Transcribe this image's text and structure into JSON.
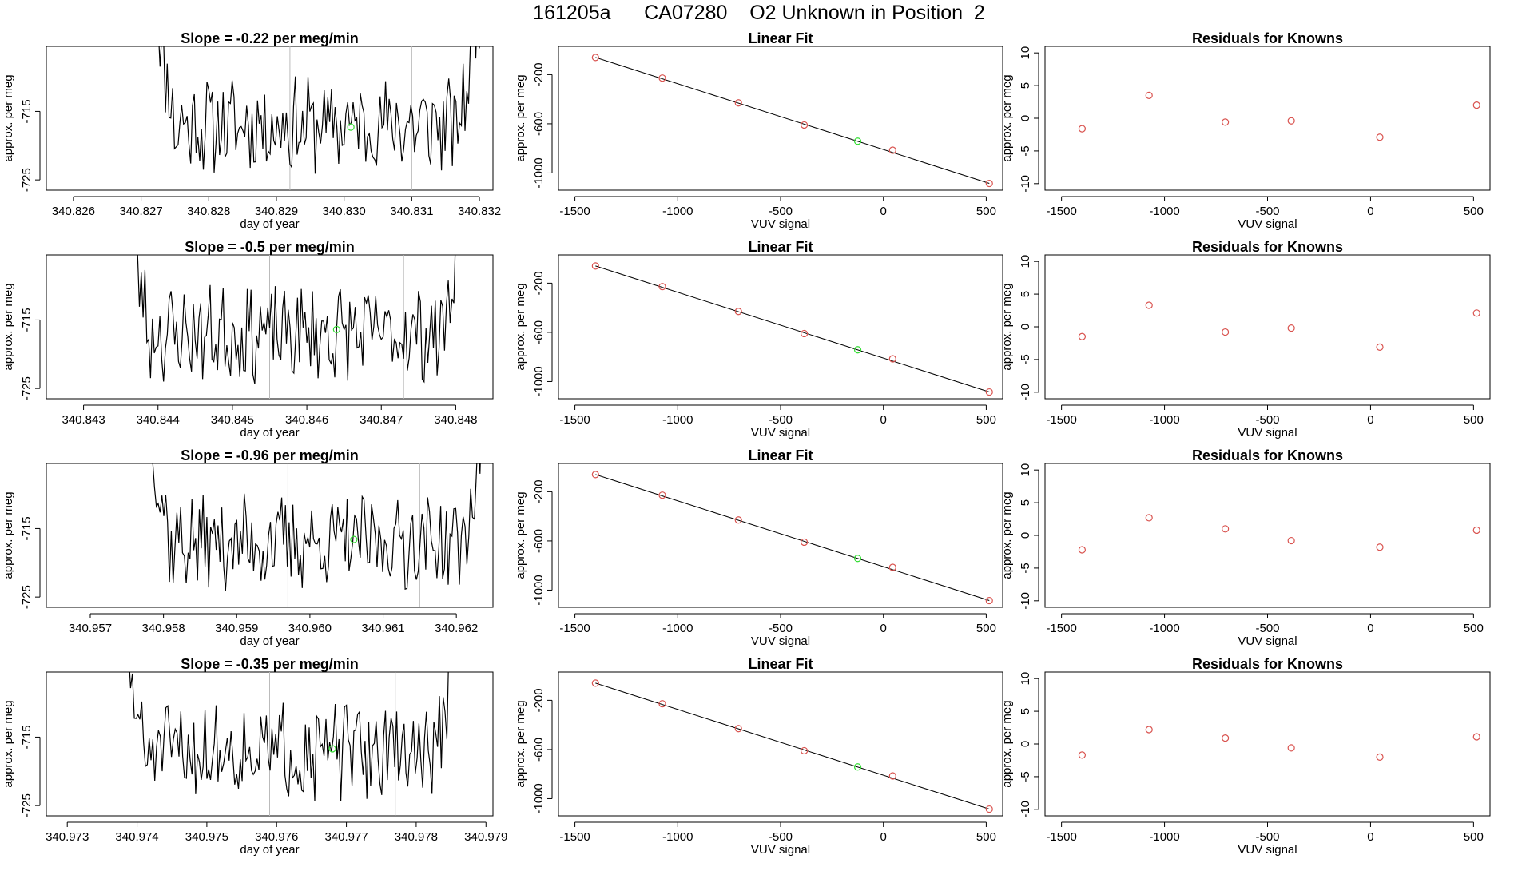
{
  "page": {
    "title": "161205a      CA07280    O2 Unknown in Position  2"
  },
  "style": {
    "trace_color": "#000000",
    "known_color": "#d9534f",
    "unknown_color": "#33dd33",
    "vline_color": "#bbbbbb"
  },
  "chart_data": [
    {
      "row": 1,
      "kind": "timeseries",
      "type": "line",
      "title": "Slope =  -0.22  per meg/min",
      "xlabel": "day of year",
      "ylabel": "approx. per meg",
      "xlim": [
        340.8256,
        340.8322
      ],
      "xticks": [
        "340.826",
        "340.827",
        "340.828",
        "340.829",
        "340.830",
        "340.831",
        "340.832"
      ],
      "ylim": [
        -726.5,
        -705.5
      ],
      "yticks": [
        "-725",
        "-715"
      ],
      "data_start": 340.8272,
      "data_end": 340.832,
      "seed": 11,
      "vlines": [
        340.8292,
        340.831
      ],
      "unknown_point": {
        "x": 340.8301,
        "y": -717.3
      }
    },
    {
      "row": 1,
      "kind": "fit",
      "type": "scatter",
      "title": "Linear Fit",
      "xlabel": "VUV signal",
      "ylabel": "approx. per meg",
      "xlim": [
        -1580,
        580
      ],
      "xticks": [
        "-1500",
        "-1000",
        "-500",
        "0",
        "500"
      ],
      "ylim": [
        -1140,
        30
      ],
      "yticks": [
        "-1000",
        "-600",
        "-200"
      ],
      "line": {
        "x": [
          -1400,
          515
        ],
        "y": [
          -60,
          -1085
        ]
      },
      "known_points": {
        "x": [
          -1400,
          -1075,
          -705,
          -385,
          45,
          515
        ],
        "y": [
          -60,
          -228,
          -430,
          -610,
          -815,
          -1085
        ]
      },
      "unknown_point": {
        "x": -125,
        "y": -742
      }
    },
    {
      "row": 1,
      "kind": "residuals",
      "type": "scatter",
      "title": "Residuals for Knowns",
      "xlabel": "VUV signal",
      "ylabel": "approx. per meg",
      "xlim": [
        -1580,
        580
      ],
      "xticks": [
        "-1500",
        "-1000",
        "-500",
        "0",
        "500"
      ],
      "ylim": [
        -11,
        11
      ],
      "yticks": [
        "-10",
        "-5",
        "0",
        "5",
        "10"
      ],
      "points": {
        "x": [
          -1400,
          -1075,
          -705,
          -385,
          45,
          515
        ],
        "y": [
          -1.6,
          3.5,
          -0.6,
          -0.4,
          -2.9,
          2.0
        ]
      }
    },
    {
      "row": 2,
      "kind": "timeseries",
      "type": "line",
      "title": "Slope =  -0.5  per meg/min",
      "xlabel": "day of year",
      "ylabel": "approx. per meg",
      "xlim": [
        340.8425,
        340.8485
      ],
      "xticks": [
        "340.843",
        "340.844",
        "340.845",
        "340.846",
        "340.847",
        "340.848"
      ],
      "ylim": [
        -726.5,
        -705.5
      ],
      "yticks": [
        "-725",
        "-715"
      ],
      "data_start": 340.8436,
      "data_end": 340.8481,
      "seed": 23,
      "vlines": [
        340.8455,
        340.8473
      ],
      "unknown_point": {
        "x": 340.8464,
        "y": -716.4
      }
    },
    {
      "row": 2,
      "kind": "fit",
      "type": "scatter",
      "title": "Linear Fit",
      "xlabel": "VUV signal",
      "ylabel": "approx. per meg",
      "xlim": [
        -1580,
        580
      ],
      "xticks": [
        "-1500",
        "-1000",
        "-500",
        "0",
        "500"
      ],
      "ylim": [
        -1140,
        30
      ],
      "yticks": [
        "-1000",
        "-600",
        "-200"
      ],
      "line": {
        "x": [
          -1400,
          515
        ],
        "y": [
          -60,
          -1085
        ]
      },
      "known_points": {
        "x": [
          -1400,
          -1075,
          -705,
          -385,
          45,
          515
        ],
        "y": [
          -60,
          -228,
          -430,
          -610,
          -815,
          -1085
        ]
      },
      "unknown_point": {
        "x": -125,
        "y": -742
      }
    },
    {
      "row": 2,
      "kind": "residuals",
      "type": "scatter",
      "title": "Residuals for Knowns",
      "xlabel": "VUV signal",
      "ylabel": "approx. per meg",
      "xlim": [
        -1580,
        580
      ],
      "xticks": [
        "-1500",
        "-1000",
        "-500",
        "0",
        "500"
      ],
      "ylim": [
        -11,
        11
      ],
      "yticks": [
        "-10",
        "-5",
        "0",
        "5",
        "10"
      ],
      "points": {
        "x": [
          -1400,
          -1075,
          -705,
          -385,
          45,
          515
        ],
        "y": [
          -1.5,
          3.3,
          -0.8,
          -0.2,
          -3.1,
          2.1
        ]
      }
    },
    {
      "row": 3,
      "kind": "timeseries",
      "type": "line",
      "title": "Slope =  -0.96  per meg/min",
      "xlabel": "day of year",
      "ylabel": "approx. per meg",
      "xlim": [
        340.9564,
        340.9625
      ],
      "xticks": [
        "340.957",
        "340.958",
        "340.959",
        "340.960",
        "340.961",
        "340.962"
      ],
      "ylim": [
        -726.5,
        -705.5
      ],
      "yticks": [
        "-725",
        "-715"
      ],
      "data_start": 340.9578,
      "data_end": 340.9624,
      "seed": 37,
      "vlines": [
        340.9597,
        340.9615
      ],
      "unknown_point": {
        "x": 340.9606,
        "y": -716.6
      }
    },
    {
      "row": 3,
      "kind": "fit",
      "type": "scatter",
      "title": "Linear Fit",
      "xlabel": "VUV signal",
      "ylabel": "approx. per meg",
      "xlim": [
        -1580,
        580
      ],
      "xticks": [
        "-1500",
        "-1000",
        "-500",
        "0",
        "500"
      ],
      "ylim": [
        -1140,
        30
      ],
      "yticks": [
        "-1000",
        "-600",
        "-200"
      ],
      "line": {
        "x": [
          -1400,
          515
        ],
        "y": [
          -60,
          -1085
        ]
      },
      "known_points": {
        "x": [
          -1400,
          -1075,
          -705,
          -385,
          45,
          515
        ],
        "y": [
          -60,
          -228,
          -430,
          -610,
          -815,
          -1085
        ]
      },
      "unknown_point": {
        "x": -125,
        "y": -742
      }
    },
    {
      "row": 3,
      "kind": "residuals",
      "type": "scatter",
      "title": "Residuals for Knowns",
      "xlabel": "VUV signal",
      "ylabel": "approx. per meg",
      "xlim": [
        -1580,
        580
      ],
      "xticks": [
        "-1500",
        "-1000",
        "-500",
        "0",
        "500"
      ],
      "ylim": [
        -11,
        11
      ],
      "yticks": [
        "-10",
        "-5",
        "0",
        "5",
        "10"
      ],
      "points": {
        "x": [
          -1400,
          -1075,
          -705,
          -385,
          45,
          515
        ],
        "y": [
          -2.2,
          2.7,
          1.0,
          -0.8,
          -1.8,
          0.8
        ]
      }
    },
    {
      "row": 4,
      "kind": "timeseries",
      "type": "line",
      "title": "Slope =  -0.35  per meg/min",
      "xlabel": "day of year",
      "ylabel": "approx. per meg",
      "xlim": [
        340.9727,
        340.9791
      ],
      "xticks": [
        "340.973",
        "340.974",
        "340.975",
        "340.976",
        "340.977",
        "340.978",
        "340.979"
      ],
      "ylim": [
        -726.5,
        -705.5
      ],
      "yticks": [
        "-725",
        "-715"
      ],
      "data_start": 340.9738,
      "data_end": 340.9786,
      "seed": 51,
      "vlines": [
        340.9759,
        340.9777
      ],
      "unknown_point": {
        "x": 340.9768,
        "y": -716.7
      }
    },
    {
      "row": 4,
      "kind": "fit",
      "type": "scatter",
      "title": "Linear Fit",
      "xlabel": "VUV signal",
      "ylabel": "approx. per meg",
      "xlim": [
        -1580,
        580
      ],
      "xticks": [
        "-1500",
        "-1000",
        "-500",
        "0",
        "500"
      ],
      "ylim": [
        -1140,
        30
      ],
      "yticks": [
        "-1000",
        "-600",
        "-200"
      ],
      "line": {
        "x": [
          -1400,
          515
        ],
        "y": [
          -60,
          -1085
        ]
      },
      "known_points": {
        "x": [
          -1400,
          -1075,
          -705,
          -385,
          45,
          515
        ],
        "y": [
          -60,
          -228,
          -430,
          -610,
          -815,
          -1085
        ]
      },
      "unknown_point": {
        "x": -125,
        "y": -742
      }
    },
    {
      "row": 4,
      "kind": "residuals",
      "type": "scatter",
      "title": "Residuals for Knowns",
      "xlabel": "VUV signal",
      "ylabel": "approx. per meg",
      "xlim": [
        -1580,
        580
      ],
      "xticks": [
        "-1500",
        "-1000",
        "-500",
        "0",
        "500"
      ],
      "ylim": [
        -11,
        11
      ],
      "yticks": [
        "-10",
        "-5",
        "0",
        "5",
        "10"
      ],
      "points": {
        "x": [
          -1400,
          -1075,
          -705,
          -385,
          45,
          515
        ],
        "y": [
          -1.7,
          2.2,
          0.9,
          -0.6,
          -2.0,
          1.1
        ]
      }
    }
  ]
}
